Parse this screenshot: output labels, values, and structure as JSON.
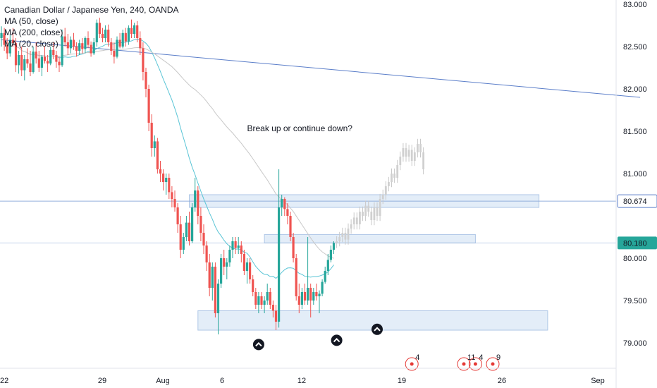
{
  "chart_data": {
    "type": "candlestick",
    "title": "Canadian Dollar / Japanese Yen, 240, OANDA",
    "indicators": [
      "MA (50, close)",
      "MA (200, close)",
      "MA (20, close)"
    ],
    "y_ticks": [
      83.0,
      82.5,
      82.0,
      81.5,
      81.0,
      80.5,
      80.0,
      79.5,
      79.0
    ],
    "y_tick_labels": [
      "83.000",
      "82.500",
      "82.000",
      "81.500",
      "81.000",
      "",
      "80.000",
      "79.500",
      "79.000"
    ],
    "ylim": [
      78.7,
      83.05
    ],
    "x_ticks": [
      "22",
      "29",
      "Aug",
      "6",
      "12",
      "19",
      "26",
      "Sep"
    ],
    "price_labels": [
      {
        "value": 80.674,
        "text": "80.674",
        "style": "outline"
      },
      {
        "value": 80.18,
        "text": "80.180",
        "style": "filled"
      }
    ],
    "horizontal_lines": [
      80.674,
      80.18
    ],
    "trendline": {
      "from": {
        "index": 0,
        "price": 82.58
      },
      "to": {
        "index": 221,
        "price": 81.9
      }
    },
    "zones": [
      {
        "from": 65,
        "to": 186,
        "low": 80.6,
        "high": 80.75
      },
      {
        "from": 91,
        "to": 164,
        "low": 80.18,
        "high": 80.28
      },
      {
        "from": 68,
        "to": 189,
        "low": 79.15,
        "high": 79.38
      }
    ],
    "annotation": {
      "text": "Break up or continue down?",
      "price": 81.5,
      "index": 85
    },
    "arrows": [
      {
        "index": 89,
        "price": 78.98
      },
      {
        "index": 116,
        "price": 79.03
      },
      {
        "index": 130,
        "price": 79.16
      }
    ],
    "event_markers": [
      {
        "index": 142,
        "label": "4"
      },
      {
        "index": 160,
        "label": "11"
      },
      {
        "index": 164,
        "label": "4"
      },
      {
        "index": 170,
        "label": "9"
      }
    ],
    "candles": [
      {
        "o": 82.6,
        "h": 82.74,
        "l": 82.5,
        "c": 82.66
      },
      {
        "o": 82.66,
        "h": 82.72,
        "l": 82.45,
        "c": 82.52
      },
      {
        "o": 82.52,
        "h": 82.6,
        "l": 82.35,
        "c": 82.42
      },
      {
        "o": 82.42,
        "h": 82.65,
        "l": 82.38,
        "c": 82.58
      },
      {
        "o": 82.58,
        "h": 82.72,
        "l": 82.5,
        "c": 82.54
      },
      {
        "o": 82.54,
        "h": 82.6,
        "l": 82.2,
        "c": 82.28
      },
      {
        "o": 82.28,
        "h": 82.45,
        "l": 82.18,
        "c": 82.4
      },
      {
        "o": 82.4,
        "h": 82.5,
        "l": 82.15,
        "c": 82.22
      },
      {
        "o": 82.22,
        "h": 82.4,
        "l": 82.1,
        "c": 82.35
      },
      {
        "o": 82.35,
        "h": 82.48,
        "l": 82.25,
        "c": 82.3
      },
      {
        "o": 82.3,
        "h": 82.45,
        "l": 82.15,
        "c": 82.2
      },
      {
        "o": 82.2,
        "h": 82.5,
        "l": 82.18,
        "c": 82.44
      },
      {
        "o": 82.44,
        "h": 82.55,
        "l": 82.3,
        "c": 82.36
      },
      {
        "o": 82.36,
        "h": 82.45,
        "l": 82.2,
        "c": 82.25
      },
      {
        "o": 82.25,
        "h": 82.4,
        "l": 82.15,
        "c": 82.38
      },
      {
        "o": 82.38,
        "h": 82.5,
        "l": 82.3,
        "c": 82.33
      },
      {
        "o": 82.33,
        "h": 82.4,
        "l": 82.2,
        "c": 82.3
      },
      {
        "o": 82.3,
        "h": 82.5,
        "l": 82.28,
        "c": 82.46
      },
      {
        "o": 82.46,
        "h": 82.55,
        "l": 82.35,
        "c": 82.4
      },
      {
        "o": 82.4,
        "h": 82.45,
        "l": 82.25,
        "c": 82.32
      },
      {
        "o": 82.32,
        "h": 82.38,
        "l": 82.2,
        "c": 82.28
      },
      {
        "o": 82.28,
        "h": 82.7,
        "l": 82.26,
        "c": 82.62
      },
      {
        "o": 82.62,
        "h": 82.72,
        "l": 82.5,
        "c": 82.55
      },
      {
        "o": 82.55,
        "h": 82.65,
        "l": 82.4,
        "c": 82.48
      },
      {
        "o": 82.48,
        "h": 82.62,
        "l": 82.42,
        "c": 82.58
      },
      {
        "o": 82.58,
        "h": 82.66,
        "l": 82.46,
        "c": 82.5
      },
      {
        "o": 82.5,
        "h": 82.55,
        "l": 82.38,
        "c": 82.45
      },
      {
        "o": 82.45,
        "h": 82.58,
        "l": 82.4,
        "c": 82.54
      },
      {
        "o": 82.54,
        "h": 82.6,
        "l": 82.42,
        "c": 82.47
      },
      {
        "o": 82.47,
        "h": 82.62,
        "l": 82.42,
        "c": 82.6
      },
      {
        "o": 82.6,
        "h": 82.68,
        "l": 82.48,
        "c": 82.52
      },
      {
        "o": 82.52,
        "h": 82.56,
        "l": 82.38,
        "c": 82.42
      },
      {
        "o": 82.42,
        "h": 82.6,
        "l": 82.4,
        "c": 82.55
      },
      {
        "o": 82.55,
        "h": 82.82,
        "l": 82.5,
        "c": 82.78
      },
      {
        "o": 82.78,
        "h": 82.84,
        "l": 82.6,
        "c": 82.65
      },
      {
        "o": 82.65,
        "h": 82.72,
        "l": 82.55,
        "c": 82.6
      },
      {
        "o": 82.6,
        "h": 82.75,
        "l": 82.55,
        "c": 82.7
      },
      {
        "o": 82.7,
        "h": 82.76,
        "l": 82.5,
        "c": 82.55
      },
      {
        "o": 82.55,
        "h": 82.6,
        "l": 82.4,
        "c": 82.45
      },
      {
        "o": 82.45,
        "h": 82.55,
        "l": 82.3,
        "c": 82.38
      },
      {
        "o": 82.38,
        "h": 82.62,
        "l": 82.36,
        "c": 82.58
      },
      {
        "o": 82.58,
        "h": 82.66,
        "l": 82.48,
        "c": 82.5
      },
      {
        "o": 82.5,
        "h": 82.7,
        "l": 82.48,
        "c": 82.66
      },
      {
        "o": 82.66,
        "h": 82.72,
        "l": 82.5,
        "c": 82.56
      },
      {
        "o": 82.56,
        "h": 82.75,
        "l": 82.52,
        "c": 82.72
      },
      {
        "o": 82.72,
        "h": 82.82,
        "l": 82.6,
        "c": 82.65
      },
      {
        "o": 82.65,
        "h": 82.78,
        "l": 82.6,
        "c": 82.75
      },
      {
        "o": 82.75,
        "h": 82.8,
        "l": 82.55,
        "c": 82.6
      },
      {
        "o": 82.6,
        "h": 82.68,
        "l": 82.4,
        "c": 82.48
      },
      {
        "o": 82.48,
        "h": 82.55,
        "l": 82.1,
        "c": 82.2
      },
      {
        "o": 82.2,
        "h": 82.25,
        "l": 81.9,
        "c": 82.0
      },
      {
        "o": 82.0,
        "h": 82.05,
        "l": 81.5,
        "c": 81.6
      },
      {
        "o": 81.6,
        "h": 81.7,
        "l": 81.2,
        "c": 81.3
      },
      {
        "o": 81.3,
        "h": 81.45,
        "l": 81.2,
        "c": 81.38
      },
      {
        "o": 81.38,
        "h": 81.42,
        "l": 81.0,
        "c": 81.05
      },
      {
        "o": 81.05,
        "h": 81.15,
        "l": 80.9,
        "c": 81.0
      },
      {
        "o": 81.0,
        "h": 81.05,
        "l": 80.8,
        "c": 80.9
      },
      {
        "o": 80.9,
        "h": 81.0,
        "l": 80.75,
        "c": 80.95
      },
      {
        "o": 80.95,
        "h": 81.0,
        "l": 80.7,
        "c": 80.78
      },
      {
        "o": 80.78,
        "h": 80.85,
        "l": 80.6,
        "c": 80.7
      },
      {
        "o": 80.7,
        "h": 80.8,
        "l": 80.55,
        "c": 80.6
      },
      {
        "o": 80.6,
        "h": 80.65,
        "l": 80.3,
        "c": 80.4
      },
      {
        "o": 80.4,
        "h": 80.5,
        "l": 80.0,
        "c": 80.1
      },
      {
        "o": 80.1,
        "h": 80.3,
        "l": 80.05,
        "c": 80.25
      },
      {
        "o": 80.25,
        "h": 80.5,
        "l": 80.2,
        "c": 80.42
      },
      {
        "o": 80.42,
        "h": 80.55,
        "l": 80.15,
        "c": 80.2
      },
      {
        "o": 80.2,
        "h": 80.65,
        "l": 80.18,
        "c": 80.6
      },
      {
        "o": 80.6,
        "h": 80.95,
        "l": 80.55,
        "c": 80.8
      },
      {
        "o": 80.8,
        "h": 80.85,
        "l": 80.4,
        "c": 80.5
      },
      {
        "o": 80.5,
        "h": 80.6,
        "l": 80.2,
        "c": 80.3
      },
      {
        "o": 80.3,
        "h": 80.4,
        "l": 80.05,
        "c": 80.15
      },
      {
        "o": 80.15,
        "h": 80.2,
        "l": 79.85,
        "c": 79.95
      },
      {
        "o": 79.95,
        "h": 80.05,
        "l": 79.55,
        "c": 79.65
      },
      {
        "o": 79.65,
        "h": 79.95,
        "l": 79.5,
        "c": 79.9
      },
      {
        "o": 79.9,
        "h": 79.95,
        "l": 79.3,
        "c": 79.35
      },
      {
        "o": 79.35,
        "h": 79.75,
        "l": 79.1,
        "c": 79.7
      },
      {
        "o": 79.7,
        "h": 80.05,
        "l": 79.65,
        "c": 80.0
      },
      {
        "o": 80.0,
        "h": 80.1,
        "l": 79.8,
        "c": 79.9
      },
      {
        "o": 79.9,
        "h": 80.0,
        "l": 79.75,
        "c": 79.95
      },
      {
        "o": 79.95,
        "h": 80.15,
        "l": 79.9,
        "c": 80.1
      },
      {
        "o": 80.1,
        "h": 80.25,
        "l": 80.0,
        "c": 80.2
      },
      {
        "o": 80.2,
        "h": 80.25,
        "l": 80.05,
        "c": 80.12
      },
      {
        "o": 80.12,
        "h": 80.25,
        "l": 80.05,
        "c": 80.15
      },
      {
        "o": 80.15,
        "h": 80.2,
        "l": 79.95,
        "c": 80.05
      },
      {
        "o": 80.05,
        "h": 80.1,
        "l": 79.8,
        "c": 79.85
      },
      {
        "o": 79.85,
        "h": 80.0,
        "l": 79.7,
        "c": 79.95
      },
      {
        "o": 79.95,
        "h": 80.0,
        "l": 79.7,
        "c": 79.75
      },
      {
        "o": 79.75,
        "h": 79.8,
        "l": 79.55,
        "c": 79.6
      },
      {
        "o": 79.6,
        "h": 79.65,
        "l": 79.4,
        "c": 79.45
      },
      {
        "o": 79.45,
        "h": 79.6,
        "l": 79.35,
        "c": 79.55
      },
      {
        "o": 79.55,
        "h": 79.6,
        "l": 79.4,
        "c": 79.45
      },
      {
        "o": 79.45,
        "h": 79.55,
        "l": 79.35,
        "c": 79.5
      },
      {
        "o": 79.5,
        "h": 79.7,
        "l": 79.45,
        "c": 79.6
      },
      {
        "o": 79.6,
        "h": 79.65,
        "l": 79.4,
        "c": 79.45
      },
      {
        "o": 79.45,
        "h": 79.5,
        "l": 79.3,
        "c": 79.38
      },
      {
        "o": 79.38,
        "h": 79.45,
        "l": 79.15,
        "c": 79.25
      },
      {
        "o": 79.25,
        "h": 81.05,
        "l": 79.18,
        "c": 80.6
      },
      {
        "o": 80.6,
        "h": 80.75,
        "l": 80.5,
        "c": 80.7
      },
      {
        "o": 80.7,
        "h": 80.72,
        "l": 80.5,
        "c": 80.58
      },
      {
        "o": 80.58,
        "h": 80.65,
        "l": 80.4,
        "c": 80.5
      },
      {
        "o": 80.5,
        "h": 80.55,
        "l": 80.2,
        "c": 80.25
      },
      {
        "o": 80.25,
        "h": 80.3,
        "l": 79.95,
        "c": 80.0
      },
      {
        "o": 80.0,
        "h": 80.05,
        "l": 79.5,
        "c": 79.55
      },
      {
        "o": 79.55,
        "h": 79.7,
        "l": 79.35,
        "c": 79.45
      },
      {
        "o": 79.45,
        "h": 79.65,
        "l": 79.4,
        "c": 79.6
      },
      {
        "o": 79.6,
        "h": 79.7,
        "l": 79.45,
        "c": 79.5
      },
      {
        "o": 79.5,
        "h": 80.25,
        "l": 79.45,
        "c": 79.65
      },
      {
        "o": 79.65,
        "h": 79.7,
        "l": 79.3,
        "c": 79.5
      },
      {
        "o": 79.5,
        "h": 79.65,
        "l": 79.45,
        "c": 79.6
      },
      {
        "o": 79.6,
        "h": 79.7,
        "l": 79.5,
        "c": 79.55
      },
      {
        "o": 79.55,
        "h": 79.62,
        "l": 79.35,
        "c": 79.58
      },
      {
        "o": 79.58,
        "h": 79.75,
        "l": 79.55,
        "c": 79.72
      },
      {
        "o": 79.72,
        "h": 79.9,
        "l": 79.7,
        "c": 79.85
      },
      {
        "o": 79.85,
        "h": 80.05,
        "l": 79.8,
        "c": 79.98
      },
      {
        "o": 79.98,
        "h": 80.15,
        "l": 79.95,
        "c": 80.1
      },
      {
        "o": 80.1,
        "h": 80.2,
        "l": 80.05,
        "c": 80.18
      }
    ],
    "projection": [
      80.2,
      80.25,
      80.3,
      80.22,
      80.35,
      80.4,
      80.48,
      80.4,
      80.55,
      80.5,
      80.62,
      80.55,
      80.45,
      80.6,
      80.5,
      80.7,
      80.75,
      80.85,
      80.9,
      81.0,
      80.95,
      81.1,
      81.2,
      81.3,
      81.2,
      81.28,
      81.15,
      81.25,
      81.35,
      81.25,
      81.05
    ],
    "colors": {
      "up": "#26a69a",
      "down": "#ef5350",
      "ma50": "#5bc5d6",
      "ma200": "#c8c8c8",
      "trend": "#5b7ec9",
      "zone_fill": "#dce8f6",
      "zone_stroke": "#aec6e6",
      "hline": "#89a7d8",
      "price_fill": "#26a69a",
      "marker": "#e53935"
    }
  }
}
